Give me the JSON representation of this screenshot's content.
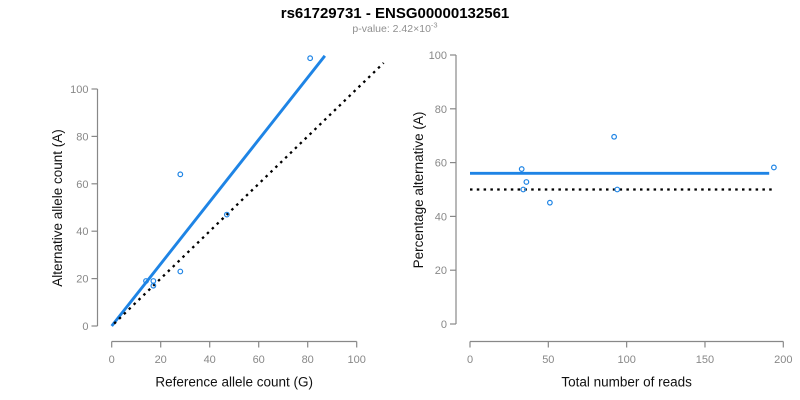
{
  "header": {
    "title": "rs61729731 - ENSG00000132561",
    "pvalue_prefix": "p-value: 2.42×10",
    "pvalue_exponent": "-3"
  },
  "colors": {
    "accent_blue": "#1E84E5",
    "axis_gray": "#888888",
    "label_black": "#111111",
    "subtitle_gray": "#8f8f8f",
    "background": "#ffffff"
  },
  "chart_data": [
    {
      "type": "scatter",
      "name": "allele-counts-scatter",
      "xlabel": "Reference allele count (G)",
      "ylabel": "Alternative allele count (A)",
      "xlim": [
        0,
        100
      ],
      "ylim": [
        0,
        100
      ],
      "xticks": [
        0,
        20,
        40,
        60,
        80,
        100
      ],
      "yticks": [
        0,
        20,
        40,
        60,
        80,
        100
      ],
      "grid": false,
      "legend": "none",
      "points": [
        [
          14,
          19
        ],
        [
          17,
          19
        ],
        [
          17,
          17
        ],
        [
          28,
          23
        ],
        [
          28,
          64
        ],
        [
          47,
          47
        ],
        [
          81,
          113
        ]
      ],
      "lines": [
        {
          "role": "fitted-line",
          "style": "solid",
          "color": "blue",
          "x1": 0,
          "y1": 0,
          "x2": 87,
          "y2": 114
        },
        {
          "role": "identity-line",
          "style": "dotted",
          "color": "black",
          "x1": 1,
          "y1": 1,
          "x2": 111,
          "y2": 111
        }
      ]
    },
    {
      "type": "scatter",
      "name": "percentage-vs-reads-scatter",
      "xlabel": "Total number of reads",
      "ylabel": "Percentage alternative (A)",
      "xlim": [
        0,
        200
      ],
      "ylim": [
        0,
        100
      ],
      "xticks": [
        0,
        50,
        100,
        150,
        200
      ],
      "yticks": [
        0,
        20,
        40,
        60,
        80,
        100
      ],
      "grid": false,
      "legend": "none",
      "points": [
        [
          33,
          57.6
        ],
        [
          34,
          50
        ],
        [
          36,
          52.8
        ],
        [
          51,
          45.1
        ],
        [
          92,
          69.6
        ],
        [
          94,
          50
        ],
        [
          194,
          58.2
        ]
      ],
      "lines": [
        {
          "role": "fitted-line",
          "style": "solid",
          "color": "blue",
          "x1": 0,
          "y1": 56,
          "x2": 191,
          "y2": 56
        },
        {
          "role": "null-expectation-line",
          "style": "dotted",
          "color": "black",
          "x1": 0,
          "y1": 50,
          "x2": 195,
          "y2": 50
        }
      ]
    }
  ]
}
